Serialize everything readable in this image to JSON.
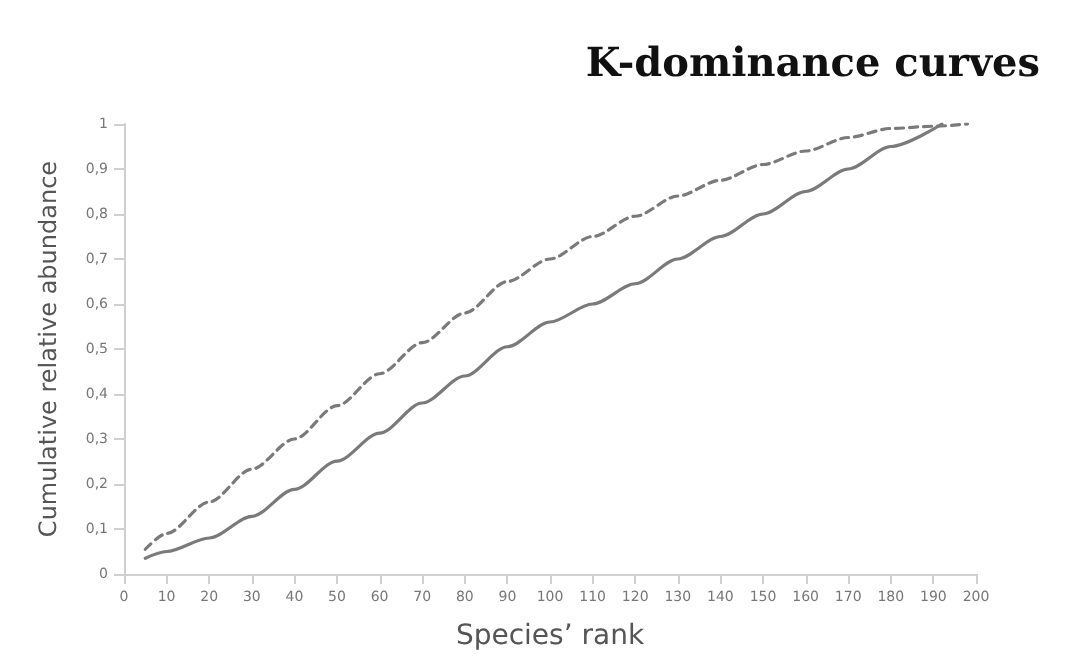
{
  "chart_data": {
    "type": "line",
    "title": "K-dominance curves",
    "xlabel": "Species’ rank",
    "ylabel": "Cumulative relative abundance",
    "xlim": [
      0,
      200
    ],
    "xticks": [
      0,
      10,
      20,
      30,
      40,
      50,
      60,
      70,
      80,
      90,
      100,
      110,
      120,
      130,
      140,
      150,
      160,
      170,
      180,
      190,
      200
    ],
    "ylim": [
      0,
      1
    ],
    "yticks": [
      0,
      {
        "value": 0.1,
        "label": "0,1"
      },
      {
        "value": 0.2,
        "label": "0,2"
      },
      {
        "value": 0.3,
        "label": "0,3"
      },
      {
        "value": 0.4,
        "label": "0,4"
      },
      {
        "value": 0.5,
        "label": "0,5"
      },
      {
        "value": 0.6,
        "label": "0,6"
      },
      {
        "value": 0.7,
        "label": "0,7"
      },
      {
        "value": 0.8,
        "label": "0,8"
      },
      {
        "value": 0.9,
        "label": "0,9"
      },
      1
    ],
    "grid": false,
    "marker": "none",
    "series": [
      {
        "color": "#7a7a7a",
        "line_style": "solid",
        "x": [
          5,
          10,
          20,
          30,
          40,
          50,
          60,
          70,
          80,
          90,
          100,
          110,
          120,
          130,
          140,
          150,
          160,
          170,
          180,
          192
        ],
        "values": [
          0.035,
          0.05,
          0.08,
          0.128,
          0.188,
          0.251,
          0.313,
          0.38,
          0.44,
          0.505,
          0.56,
          0.6,
          0.645,
          0.7,
          0.75,
          0.8,
          0.85,
          0.9,
          0.95,
          1.0
        ]
      },
      {
        "color": "#7a7a7a",
        "line_style": "dashed",
        "x": [
          5,
          10,
          20,
          30,
          40,
          50,
          60,
          70,
          80,
          90,
          100,
          110,
          120,
          130,
          140,
          150,
          160,
          170,
          180,
          190,
          198
        ],
        "values": [
          0.055,
          0.09,
          0.16,
          0.233,
          0.3,
          0.374,
          0.445,
          0.514,
          0.58,
          0.65,
          0.7,
          0.75,
          0.795,
          0.84,
          0.875,
          0.91,
          0.94,
          0.97,
          0.99,
          0.995,
          1.0
        ]
      }
    ]
  }
}
